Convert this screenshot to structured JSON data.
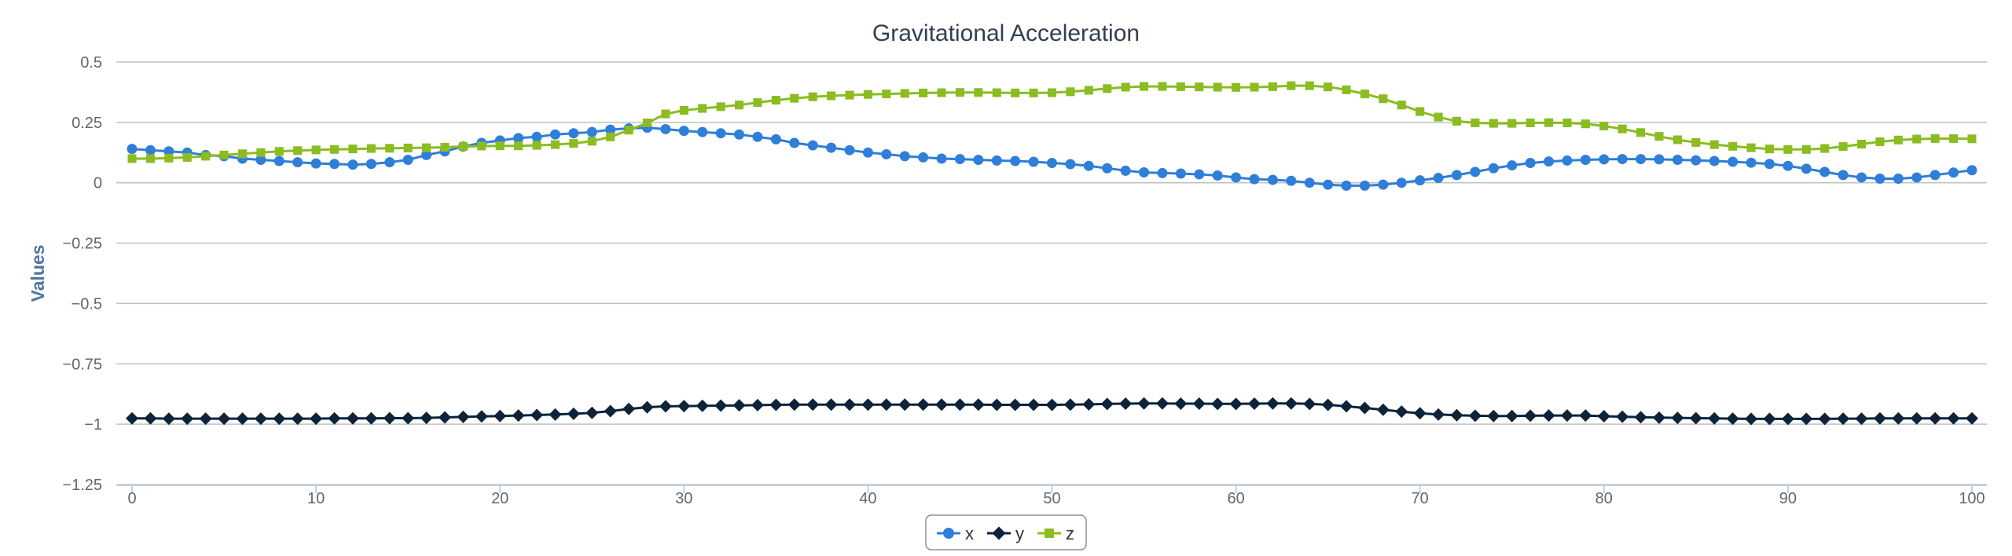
{
  "chart_data": {
    "type": "line",
    "title": "Gravitational Acceleration",
    "xlabel": "",
    "ylabel": "Values",
    "xlim": [
      0,
      100
    ],
    "ylim": [
      -1.25,
      0.5
    ],
    "x_ticks": [
      "0",
      "10",
      "20",
      "30",
      "40",
      "50",
      "60",
      "70",
      "80",
      "90",
      "100"
    ],
    "y_ticks": [
      "0.5",
      "0.25",
      "0",
      "−0.25",
      "−0.5",
      "−0.75",
      "−1",
      "−1.25"
    ],
    "grid": true,
    "legend_position": "bottom-center",
    "series": [
      {
        "name": "x",
        "color": "#2f7ed8",
        "marker": "circle",
        "values": [
          0.14,
          0.135,
          0.13,
          0.125,
          0.115,
          0.11,
          0.1,
          0.095,
          0.09,
          0.085,
          0.08,
          0.078,
          0.075,
          0.078,
          0.085,
          0.095,
          0.115,
          0.13,
          0.15,
          0.165,
          0.175,
          0.185,
          0.19,
          0.2,
          0.205,
          0.21,
          0.22,
          0.225,
          0.228,
          0.222,
          0.215,
          0.21,
          0.205,
          0.2,
          0.19,
          0.18,
          0.165,
          0.155,
          0.145,
          0.135,
          0.125,
          0.118,
          0.11,
          0.105,
          0.1,
          0.098,
          0.095,
          0.092,
          0.09,
          0.087,
          0.082,
          0.077,
          0.07,
          0.06,
          0.05,
          0.043,
          0.04,
          0.038,
          0.035,
          0.03,
          0.022,
          0.015,
          0.012,
          0.008,
          0,
          -0.008,
          -0.012,
          -0.012,
          -0.008,
          0,
          0.01,
          0.02,
          0.032,
          0.045,
          0.06,
          0.072,
          0.082,
          0.088,
          0.092,
          0.095,
          0.097,
          0.098,
          0.098,
          0.097,
          0.095,
          0.093,
          0.09,
          0.087,
          0.083,
          0.078,
          0.07,
          0.058,
          0.045,
          0.032,
          0.022,
          0.017,
          0.017,
          0.022,
          0.032,
          0.042,
          0.052
        ]
      },
      {
        "name": "y",
        "color": "#0d233a",
        "marker": "diamond",
        "values": [
          -0.976,
          -0.976,
          -0.977,
          -0.977,
          -0.977,
          -0.977,
          -0.977,
          -0.977,
          -0.977,
          -0.977,
          -0.977,
          -0.976,
          -0.976,
          -0.976,
          -0.975,
          -0.975,
          -0.974,
          -0.972,
          -0.97,
          -0.968,
          -0.966,
          -0.964,
          -0.962,
          -0.96,
          -0.957,
          -0.953,
          -0.946,
          -0.937,
          -0.93,
          -0.926,
          -0.925,
          -0.924,
          -0.923,
          -0.922,
          -0.921,
          -0.92,
          -0.919,
          -0.919,
          -0.919,
          -0.919,
          -0.919,
          -0.919,
          -0.919,
          -0.919,
          -0.919,
          -0.919,
          -0.919,
          -0.92,
          -0.92,
          -0.92,
          -0.92,
          -0.919,
          -0.918,
          -0.916,
          -0.915,
          -0.914,
          -0.914,
          -0.915,
          -0.915,
          -0.916,
          -0.916,
          -0.915,
          -0.914,
          -0.914,
          -0.916,
          -0.92,
          -0.926,
          -0.933,
          -0.94,
          -0.948,
          -0.955,
          -0.96,
          -0.963,
          -0.965,
          -0.966,
          -0.966,
          -0.965,
          -0.964,
          -0.964,
          -0.964,
          -0.967,
          -0.969,
          -0.971,
          -0.973,
          -0.974,
          -0.975,
          -0.976,
          -0.977,
          -0.978,
          -0.978,
          -0.978,
          -0.978,
          -0.978,
          -0.977,
          -0.977,
          -0.976,
          -0.976,
          -0.976,
          -0.976,
          -0.976,
          -0.976
        ]
      },
      {
        "name": "z",
        "color": "#8bbc21",
        "marker": "square",
        "values": [
          0.1,
          0.1,
          0.102,
          0.105,
          0.11,
          0.115,
          0.12,
          0.125,
          0.13,
          0.133,
          0.136,
          0.138,
          0.14,
          0.142,
          0.143,
          0.144,
          0.145,
          0.147,
          0.15,
          0.152,
          0.153,
          0.153,
          0.155,
          0.158,
          0.163,
          0.172,
          0.19,
          0.218,
          0.248,
          0.285,
          0.3,
          0.308,
          0.315,
          0.322,
          0.332,
          0.342,
          0.35,
          0.356,
          0.36,
          0.363,
          0.366,
          0.368,
          0.37,
          0.372,
          0.373,
          0.374,
          0.374,
          0.373,
          0.372,
          0.372,
          0.373,
          0.377,
          0.383,
          0.39,
          0.396,
          0.399,
          0.399,
          0.398,
          0.397,
          0.396,
          0.395,
          0.396,
          0.398,
          0.402,
          0.402,
          0.397,
          0.385,
          0.368,
          0.348,
          0.322,
          0.295,
          0.272,
          0.255,
          0.248,
          0.246,
          0.246,
          0.248,
          0.249,
          0.248,
          0.244,
          0.235,
          0.223,
          0.208,
          0.192,
          0.178,
          0.167,
          0.158,
          0.151,
          0.145,
          0.14,
          0.138,
          0.138,
          0.142,
          0.15,
          0.16,
          0.17,
          0.177,
          0.181,
          0.183,
          0.183,
          0.182
        ]
      }
    ]
  }
}
